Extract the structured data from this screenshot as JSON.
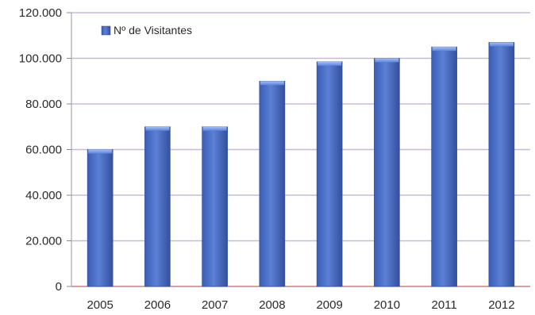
{
  "chart_data": {
    "type": "bar",
    "categories": [
      "2005",
      "2006",
      "2007",
      "2008",
      "2009",
      "2010",
      "2011",
      "2012"
    ],
    "series": [
      {
        "name": "Nº de Visitantes",
        "values": [
          60000,
          70000,
          70000,
          90000,
          98500,
          100000,
          105000,
          107000
        ],
        "color": "#4a6fc4"
      }
    ],
    "ylim": [
      0,
      120000
    ],
    "yticks": [
      0,
      20000,
      40000,
      60000,
      80000,
      100000,
      120000
    ],
    "ytick_labels": [
      "0",
      "20.000",
      "40.000",
      "60.000",
      "80.000",
      "100.000",
      "120.000"
    ],
    "grid": true,
    "grid_color": "#c8b8e0",
    "legend_position": "top-left",
    "title": "",
    "xlabel": "",
    "ylabel": ""
  }
}
